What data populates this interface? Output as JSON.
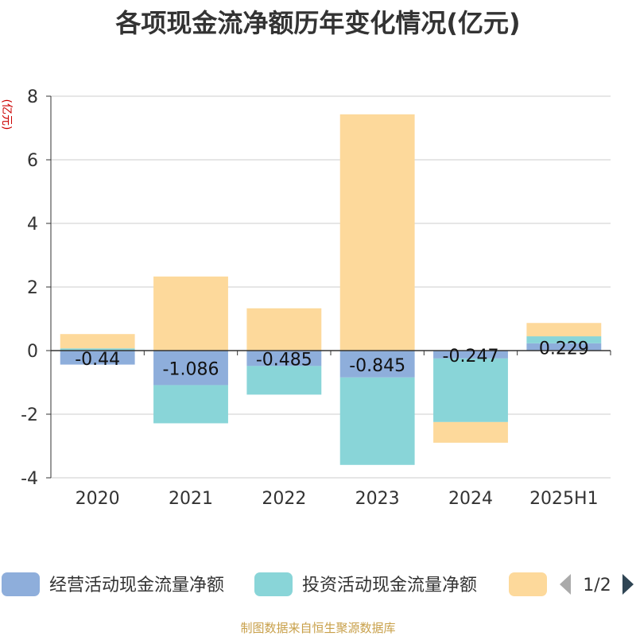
{
  "chart_data": {
    "type": "bar",
    "stacked": true,
    "title": "各项现金流净额历年变化情况(亿元)",
    "ylabel": "(亿元)",
    "xlabel": "",
    "categories": [
      "2020",
      "2021",
      "2022",
      "2023",
      "2024",
      "2025H1"
    ],
    "ylim": [
      -4,
      8
    ],
    "yticks": [
      -4,
      -2,
      0,
      2,
      4,
      6,
      8
    ],
    "grid": true,
    "series": [
      {
        "name": "经营活动现金流量净额",
        "color": "#8eaedb",
        "values": [
          -0.44,
          -1.086,
          -0.485,
          -0.845,
          -0.247,
          0.229
        ],
        "labels": [
          "-0.44",
          "-1.086",
          "-0.485",
          "-0.845",
          "-0.247",
          "0.229"
        ]
      },
      {
        "name": "投资活动现金流量净额",
        "color": "#89d5d8",
        "values": [
          0.07,
          -1.2,
          -0.9,
          -2.75,
          -2.0,
          0.22
        ]
      },
      {
        "name": "",
        "color": "#fdd99b",
        "values": [
          0.45,
          2.33,
          1.33,
          7.43,
          -0.65,
          0.42
        ]
      }
    ],
    "legend": {
      "position": "bottom",
      "page": "1/2"
    }
  },
  "source": "制图数据来自恒生聚源数据库"
}
